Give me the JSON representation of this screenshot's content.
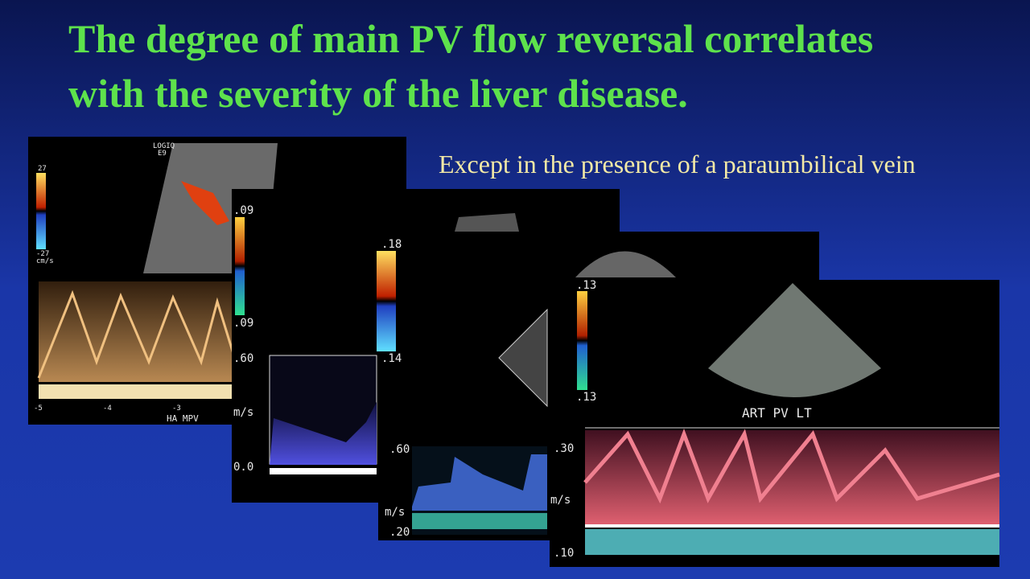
{
  "slide": {
    "title": [
      "The degree of main PV flow reversal correlates",
      "with the severity of the liver disease."
    ],
    "subtitle": "Except in the presence of a paraumbilical vein",
    "panels": [
      {
        "labels": [
          "LOGIQ",
          "E9",
          "27",
          "-27",
          "cm/s",
          "-5",
          "-4",
          "-3",
          "HA MPV"
        ]
      },
      {
        "labels": [
          ".09",
          ".09",
          ".60",
          "m/s",
          "0.0"
        ]
      },
      {
        "labels": [
          ".18",
          ".14",
          ".60",
          "m/s",
          ".20"
        ]
      },
      {
        "labels": [
          ".13",
          ".13",
          "ART PV LT",
          ".30",
          "m/s",
          ".10"
        ]
      }
    ]
  }
}
